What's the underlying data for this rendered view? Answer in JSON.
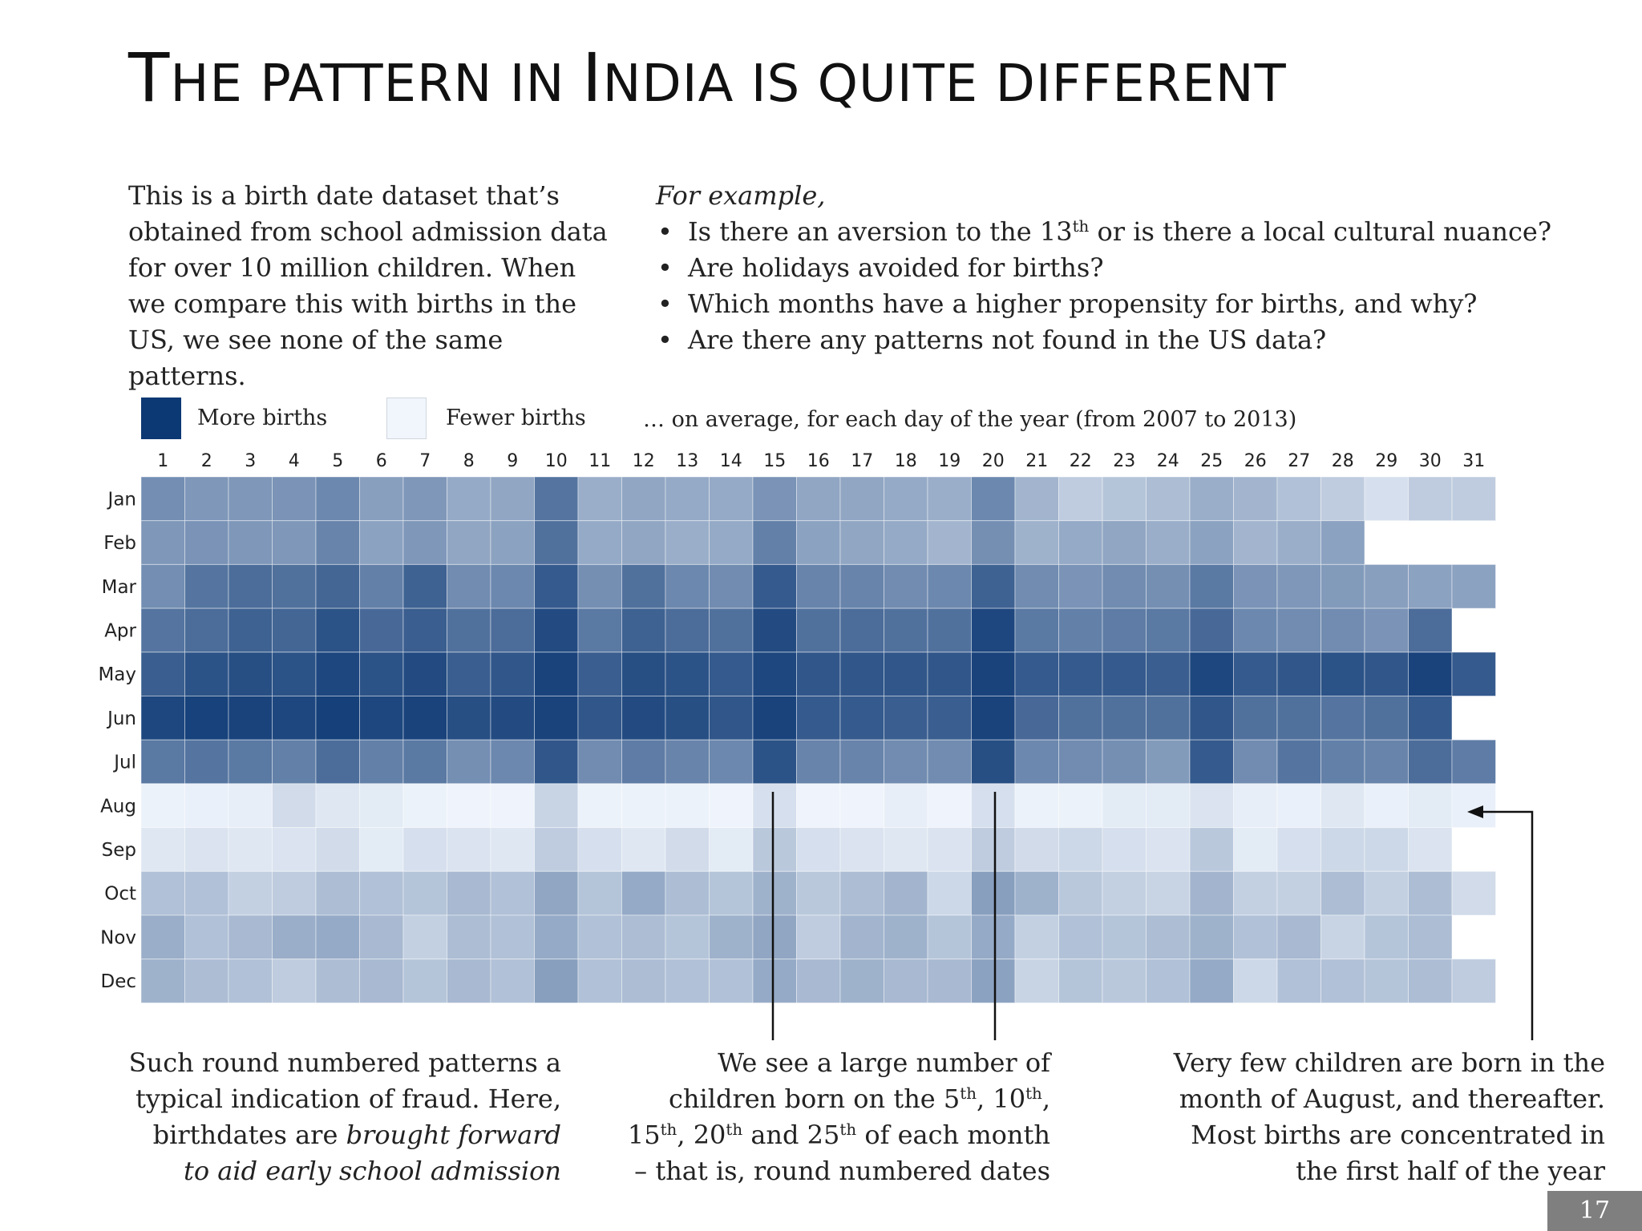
{
  "slide": {
    "title_parts": [
      {
        "text": "T",
        "cls": "big"
      },
      {
        "text": "HE PATTERN IN ",
        "cls": "sc"
      },
      {
        "text": "I",
        "cls": "big"
      },
      {
        "text": "NDIA IS QUITE DIFFERENT",
        "cls": "sc"
      }
    ],
    "intro": "This is a birth date dataset that’s obtained from school admission data for over 10 million children. When we compare this with births in the US, we see none of the same patterns.",
    "examples_heading": "For example,",
    "bullets": [
      {
        "before": "Is there an aversion to the 13",
        "sup": "th",
        "after": " or is there a local cultural nuance?"
      },
      {
        "before": "Are holidays avoided for births?",
        "sup": "",
        "after": ""
      },
      {
        "before": "Which months have a higher propensity for births, and why?",
        "sup": "",
        "after": ""
      },
      {
        "before": "Are there any patterns not found in the US data?",
        "sup": "",
        "after": ""
      }
    ],
    "legend": {
      "more_label": "More births",
      "fewer_label": "Fewer births",
      "average_note": "… on average, for each day of the year (from 2007 to 2013)"
    },
    "annotations": {
      "left": [
        {
          "t": "Such round numbered patterns a typical indication of fraud. Here, birthdates are "
        },
        {
          "t": "brought forward to aid early school admission",
          "style": "i"
        }
      ],
      "middle": [
        {
          "t": "We see a large number of children born on the 5"
        },
        {
          "t": "th",
          "style": "sup"
        },
        {
          "t": ", 10"
        },
        {
          "t": "th",
          "style": "sup"
        },
        {
          "t": ", 15"
        },
        {
          "t": "th",
          "style": "sup"
        },
        {
          "t": ", 20"
        },
        {
          "t": "th",
          "style": "sup"
        },
        {
          "t": " and 25"
        },
        {
          "t": "th",
          "style": "sup"
        },
        {
          "t": " of each month – that is, round numbered dates"
        }
      ],
      "right": [
        {
          "t": "Very few children are born in the month of August, and thereafter. Most births are concentrated in the first half of the year"
        }
      ]
    },
    "page_number": "17"
  },
  "colors": {
    "more": "#0c3874",
    "fewer": "#f1f6fd"
  },
  "chart_data": {
    "type": "heatmap",
    "x": [
      "1",
      "2",
      "3",
      "4",
      "5",
      "6",
      "7",
      "8",
      "9",
      "10",
      "11",
      "12",
      "13",
      "14",
      "15",
      "16",
      "17",
      "18",
      "19",
      "20",
      "21",
      "22",
      "23",
      "24",
      "25",
      "26",
      "27",
      "28",
      "29",
      "30",
      "31"
    ],
    "y": [
      "Jan",
      "Feb",
      "Mar",
      "Apr",
      "May",
      "Jun",
      "Jul",
      "Aug",
      "Sep",
      "Oct",
      "Nov",
      "Dec"
    ],
    "value_scale": "relative birth intensity, 0 = fewer births, 1 = more births",
    "values": [
      [
        0.55,
        0.5,
        0.5,
        0.52,
        0.58,
        0.46,
        0.5,
        0.4,
        0.42,
        0.68,
        0.38,
        0.42,
        0.4,
        0.4,
        0.52,
        0.42,
        0.42,
        0.4,
        0.38,
        0.58,
        0.34,
        0.22,
        0.26,
        0.3,
        0.38,
        0.34,
        0.28,
        0.22,
        0.12,
        0.22,
        0.22
      ],
      [
        0.5,
        0.52,
        0.5,
        0.5,
        0.6,
        0.44,
        0.5,
        0.42,
        0.44,
        0.7,
        0.4,
        0.42,
        0.38,
        0.4,
        0.62,
        0.44,
        0.42,
        0.4,
        0.34,
        0.54,
        0.36,
        0.4,
        0.42,
        0.38,
        0.44,
        0.34,
        0.38,
        0.44,
        null,
        null,
        null
      ],
      [
        0.55,
        0.68,
        0.72,
        0.7,
        0.76,
        0.62,
        0.78,
        0.56,
        0.58,
        0.82,
        0.54,
        0.7,
        0.58,
        0.56,
        0.82,
        0.6,
        0.6,
        0.56,
        0.58,
        0.78,
        0.56,
        0.52,
        0.56,
        0.54,
        0.66,
        0.52,
        0.5,
        0.48,
        0.46,
        0.44,
        0.44
      ],
      [
        0.68,
        0.72,
        0.78,
        0.76,
        0.86,
        0.74,
        0.8,
        0.7,
        0.72,
        0.9,
        0.66,
        0.78,
        0.72,
        0.7,
        0.9,
        0.7,
        0.72,
        0.7,
        0.7,
        0.92,
        0.66,
        0.62,
        0.64,
        0.66,
        0.74,
        0.58,
        0.56,
        0.56,
        0.52,
        0.72,
        null
      ],
      [
        0.8,
        0.86,
        0.88,
        0.86,
        0.92,
        0.86,
        0.9,
        0.8,
        0.84,
        0.94,
        0.8,
        0.88,
        0.86,
        0.82,
        0.92,
        0.84,
        0.84,
        0.84,
        0.84,
        0.94,
        0.82,
        0.82,
        0.82,
        0.8,
        0.92,
        0.82,
        0.84,
        0.86,
        0.84,
        0.94,
        0.82
      ],
      [
        0.92,
        0.95,
        0.94,
        0.92,
        0.96,
        0.92,
        0.94,
        0.88,
        0.9,
        0.94,
        0.84,
        0.9,
        0.88,
        0.84,
        0.94,
        0.82,
        0.82,
        0.8,
        0.8,
        0.94,
        0.74,
        0.7,
        0.7,
        0.7,
        0.84,
        0.7,
        0.7,
        0.68,
        0.7,
        0.82,
        null
      ],
      [
        0.66,
        0.68,
        0.66,
        0.62,
        0.72,
        0.62,
        0.66,
        0.54,
        0.58,
        0.84,
        0.56,
        0.64,
        0.6,
        0.58,
        0.86,
        0.6,
        0.6,
        0.56,
        0.56,
        0.88,
        0.58,
        0.56,
        0.54,
        0.48,
        0.82,
        0.56,
        0.68,
        0.62,
        0.6,
        0.72,
        0.64
      ],
      [
        0.02,
        0.03,
        0.04,
        0.14,
        0.08,
        0.06,
        0.02,
        0.01,
        0.01,
        0.18,
        0.02,
        0.02,
        0.02,
        0.01,
        0.12,
        0.01,
        0.01,
        0.04,
        0.01,
        0.12,
        0.02,
        0.02,
        0.06,
        0.06,
        0.1,
        0.04,
        0.03,
        0.08,
        0.03,
        0.06,
        0.03
      ],
      [
        0.08,
        0.1,
        0.08,
        0.1,
        0.14,
        0.06,
        0.12,
        0.1,
        0.08,
        0.22,
        0.12,
        0.08,
        0.14,
        0.06,
        0.24,
        0.12,
        0.1,
        0.08,
        0.1,
        0.22,
        0.14,
        0.16,
        0.12,
        0.1,
        0.24,
        0.06,
        0.12,
        0.16,
        0.16,
        0.1,
        null
      ],
      [
        0.28,
        0.28,
        0.2,
        0.22,
        0.3,
        0.28,
        0.26,
        0.32,
        0.28,
        0.42,
        0.26,
        0.4,
        0.3,
        0.26,
        0.36,
        0.24,
        0.3,
        0.34,
        0.16,
        0.46,
        0.36,
        0.24,
        0.2,
        0.18,
        0.34,
        0.2,
        0.2,
        0.3,
        0.2,
        0.3,
        0.14
      ],
      [
        0.38,
        0.28,
        0.32,
        0.38,
        0.4,
        0.32,
        0.2,
        0.3,
        0.28,
        0.4,
        0.28,
        0.3,
        0.26,
        0.36,
        0.42,
        0.22,
        0.34,
        0.36,
        0.26,
        0.4,
        0.2,
        0.28,
        0.26,
        0.3,
        0.36,
        0.28,
        0.32,
        0.18,
        0.26,
        0.3,
        null
      ],
      [
        0.36,
        0.3,
        0.28,
        0.22,
        0.3,
        0.32,
        0.26,
        0.32,
        0.28,
        0.46,
        0.28,
        0.3,
        0.28,
        0.28,
        0.4,
        0.32,
        0.36,
        0.32,
        0.32,
        0.44,
        0.18,
        0.26,
        0.24,
        0.28,
        0.4,
        0.16,
        0.28,
        0.28,
        0.26,
        0.3,
        0.22
      ]
    ]
  }
}
